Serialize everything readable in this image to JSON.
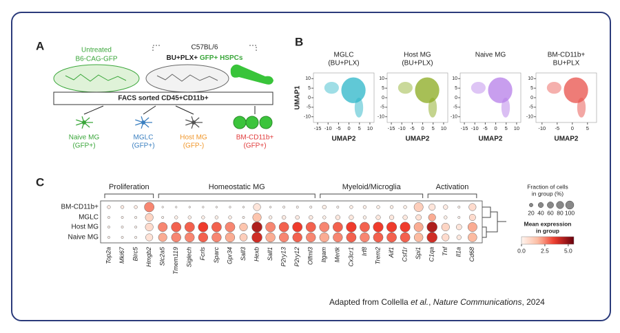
{
  "panel_a": {
    "label": "A",
    "donor": [
      "Untreated",
      "B6-CAG-GFP"
    ],
    "recipient": "C57BL/6",
    "treatment": "BU+PLX+ ",
    "graft": "GFP+ HSPCs",
    "sort": "FACS sorted  CD45+CD11b+",
    "outputs": [
      {
        "name": "Naive MG",
        "gfp": "(GFP+)",
        "color": "#3aa63a"
      },
      {
        "name": "MGLC",
        "gfp": "(GFP+)",
        "color": "#3a7fc0"
      },
      {
        "name": "Host MG",
        "gfp": "(GFP-)",
        "color": "#f0962a"
      },
      {
        "name": "BM-CD11b+",
        "gfp": "(GFP+)",
        "color": "#e03a3a"
      }
    ]
  },
  "panel_b": {
    "label": "B",
    "y_label": "UMAP1",
    "x_label": "UMAP2",
    "plots": [
      {
        "title": [
          "MGLC",
          "(BU+PLX)"
        ],
        "color": "#2bb5c8",
        "xlim": [
          -17,
          12
        ],
        "xticks": [
          -15,
          -10,
          -5,
          0,
          5,
          10
        ],
        "ylim": [
          -13,
          13
        ],
        "yticks": [
          10,
          5,
          0,
          -5,
          -10
        ]
      },
      {
        "title": [
          "Host MG",
          "(BU+PLX)"
        ],
        "color": "#8aaa1e",
        "xlim": [
          -17,
          12
        ],
        "xticks": [
          -15,
          -10,
          -5,
          0,
          5,
          10
        ],
        "ylim": [
          -13,
          13
        ],
        "yticks": [
          10,
          5,
          0,
          -5,
          -10
        ]
      },
      {
        "title": [
          "Naive MG"
        ],
        "color": "#b57ee8",
        "xlim": [
          -17,
          12
        ],
        "xticks": [
          -15,
          -10,
          -5,
          0,
          5,
          10
        ],
        "ylim": [
          -13,
          13
        ],
        "yticks": [
          10,
          5,
          0,
          -5,
          -10
        ]
      },
      {
        "title": [
          "BM-CD11b+",
          "BU+PLX"
        ],
        "color": "#e8504a",
        "xlim": [
          -12,
          8
        ],
        "xticks": [
          -10,
          -5,
          0,
          5
        ],
        "ylim": [
          -13,
          13
        ],
        "yticks": [
          10,
          5,
          0,
          -5,
          -10
        ]
      }
    ]
  },
  "panel_c": {
    "label": "C",
    "type": "dotplot",
    "groups": [
      {
        "name": "Proliferation",
        "from": 0,
        "to": 3
      },
      {
        "name": "Homeostatic MG",
        "from": 4,
        "to": 15
      },
      {
        "name": "Myeloid/Microglia",
        "from": 16,
        "to": 23
      },
      {
        "name": "Activation",
        "from": 24,
        "to": 27
      }
    ],
    "genes": [
      "Top2a",
      "Mki67",
      "Birc5",
      "Hmgb2",
      "Slc2a5",
      "Tmem119",
      "Siglech",
      "Fcrls",
      "Sparc",
      "Gpr34",
      "Sall3",
      "Hexb",
      "Sall1",
      "P2ry13",
      "P2ry12",
      "Olfml3",
      "Itgam",
      "Mertk",
      "Cx3cr1",
      "Irf8",
      "Trem2",
      "Aif1",
      "Csf1r",
      "Spi1",
      "C1qa",
      "Tnf",
      "Il1a",
      "Cd68"
    ],
    "rows": [
      {
        "name": "BM-CD11b+",
        "fraction": [
          10,
          10,
          10,
          90,
          3,
          3,
          3,
          3,
          3,
          3,
          3,
          50,
          3,
          5,
          5,
          5,
          15,
          5,
          10,
          10,
          10,
          10,
          10,
          80,
          40,
          20,
          5,
          50
        ],
        "expression": [
          0.3,
          0.3,
          0.3,
          2.5,
          0,
          0,
          0,
          0,
          0,
          0,
          0,
          0.5,
          0,
          0,
          0,
          0,
          0.2,
          0,
          0.2,
          0.2,
          0.2,
          0.2,
          0.2,
          1.2,
          0.5,
          0.3,
          0.1,
          0.8
        ]
      },
      {
        "name": "MGLC",
        "fraction": [
          5,
          5,
          5,
          60,
          5,
          10,
          10,
          10,
          10,
          10,
          5,
          70,
          10,
          15,
          15,
          15,
          10,
          20,
          20,
          10,
          20,
          20,
          20,
          30,
          50,
          10,
          5,
          40
        ],
        "expression": [
          0.1,
          0.1,
          0.1,
          1,
          0.1,
          0.2,
          0.2,
          0.2,
          0.2,
          0.2,
          0.1,
          1.5,
          0.2,
          0.3,
          0.3,
          0.3,
          0.2,
          0.4,
          0.4,
          0.2,
          0.4,
          0.4,
          0.4,
          0.6,
          2,
          0.2,
          0.1,
          0.8
        ]
      },
      {
        "name": "Host MG",
        "fraction": [
          5,
          5,
          5,
          60,
          80,
          90,
          90,
          90,
          90,
          90,
          60,
          100,
          90,
          90,
          90,
          90,
          90,
          90,
          95,
          90,
          95,
          95,
          95,
          80,
          100,
          60,
          30,
          80
        ],
        "expression": [
          0.1,
          0.1,
          0.1,
          0.8,
          2.5,
          3,
          3,
          3.5,
          3,
          2.5,
          1.5,
          4.5,
          2.5,
          3,
          3.5,
          3,
          2.5,
          3,
          3.5,
          3,
          3.5,
          3.5,
          3.5,
          2,
          4.5,
          1,
          0.5,
          2
        ]
      },
      {
        "name": "Naive MG",
        "fraction": [
          5,
          5,
          5,
          50,
          70,
          85,
          85,
          85,
          85,
          85,
          55,
          100,
          85,
          85,
          85,
          85,
          85,
          85,
          90,
          85,
          90,
          90,
          90,
          75,
          100,
          50,
          20,
          75
        ],
        "expression": [
          0.1,
          0.1,
          0.1,
          0.6,
          2,
          2.5,
          2.5,
          3,
          2.5,
          2,
          1.2,
          4,
          2,
          2.5,
          3,
          2.5,
          2,
          2.5,
          3,
          2.5,
          3,
          3,
          3,
          1.8,
          4,
          0.8,
          0.4,
          1.8
        ]
      }
    ],
    "size_legend": {
      "title": [
        "Fraction of cells",
        "in group (%)"
      ],
      "ticks": [
        20,
        40,
        60,
        80,
        100
      ]
    },
    "color_legend": {
      "title": [
        "Mean expression",
        "in group"
      ],
      "clim": [
        0,
        5.6
      ],
      "ticks": [
        {
          "value": 0,
          "label": "0.0"
        },
        {
          "value": 2.5,
          "label": "2.5"
        },
        {
          "value": 5,
          "label": "5.0"
        }
      ]
    }
  },
  "caption": {
    "a": "Adapted from Collella ",
    "b": "et al.",
    "c": ", ",
    "d": "Nature Communications",
    "e": ", 2024"
  }
}
